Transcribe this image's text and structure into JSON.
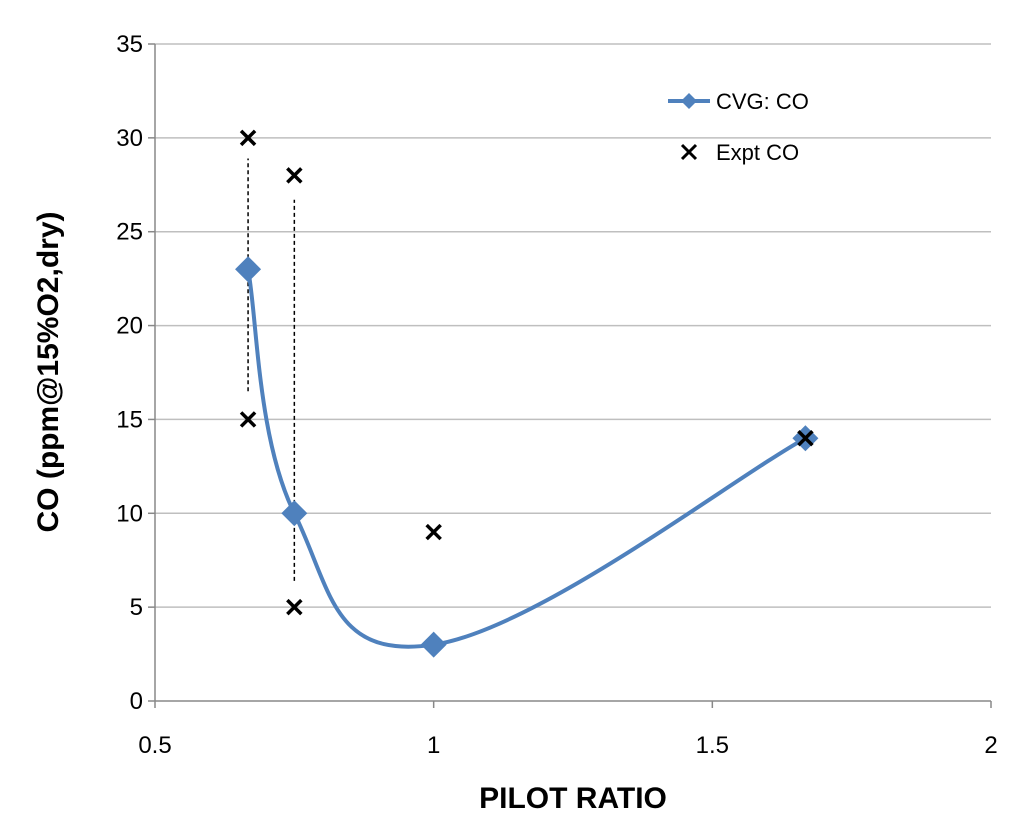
{
  "chart_data": {
    "type": "scatter",
    "title": "",
    "xlabel": "PILOT RATIO",
    "ylabel": "CO (ppm@15%O2,dry)",
    "xlim": [
      0.5,
      2
    ],
    "ylim": [
      0,
      35
    ],
    "xticks": [
      0.5,
      1,
      1.5,
      2
    ],
    "xtick_labels": [
      "0.5",
      "1",
      "1.5",
      "2"
    ],
    "yticks": [
      0,
      5,
      10,
      15,
      20,
      25,
      30,
      35
    ],
    "ytick_labels": [
      "0",
      "5",
      "10",
      "15",
      "20",
      "25",
      "30",
      "35"
    ],
    "grid": "horizontal",
    "legend_position": "top-right",
    "series": [
      {
        "name": "CVG: CO",
        "style": "smooth-line-diamond",
        "color": "#4f81bd",
        "x": [
          0.667,
          0.75,
          1.0,
          1.667
        ],
        "y": [
          23,
          10,
          3,
          14
        ]
      },
      {
        "name": "Expt CO",
        "style": "x-marker",
        "color": "#000000",
        "x": [
          0.667,
          0.667,
          0.75,
          0.75,
          1.0,
          1.667
        ],
        "y": [
          30,
          15,
          28,
          5,
          9,
          14
        ]
      }
    ],
    "annotations": [
      {
        "type": "dashed-vertical-line",
        "x": 0.667,
        "y_range": [
          16.5,
          28.9
        ]
      },
      {
        "type": "dashed-vertical-line",
        "x": 0.75,
        "y_range": [
          6.4,
          26.7
        ]
      }
    ]
  }
}
